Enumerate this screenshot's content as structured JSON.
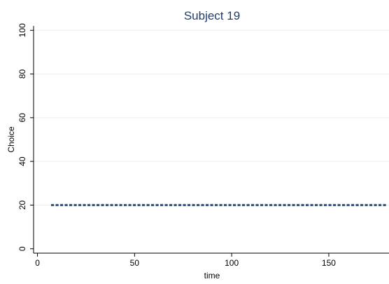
{
  "chart_data": {
    "type": "line",
    "title": "Subject 19",
    "xlabel": "time",
    "ylabel": "Choice",
    "xlim": [
      -2,
      181
    ],
    "ylim": [
      -2,
      102
    ],
    "xticks": [
      0,
      50,
      100,
      150
    ],
    "yticks": [
      0,
      20,
      40,
      60,
      80,
      100
    ],
    "grid": true,
    "series": [
      {
        "x": [
          7,
          180
        ],
        "y": [
          20,
          20
        ],
        "color": "#2d5a8a",
        "style": "dashed"
      }
    ]
  }
}
